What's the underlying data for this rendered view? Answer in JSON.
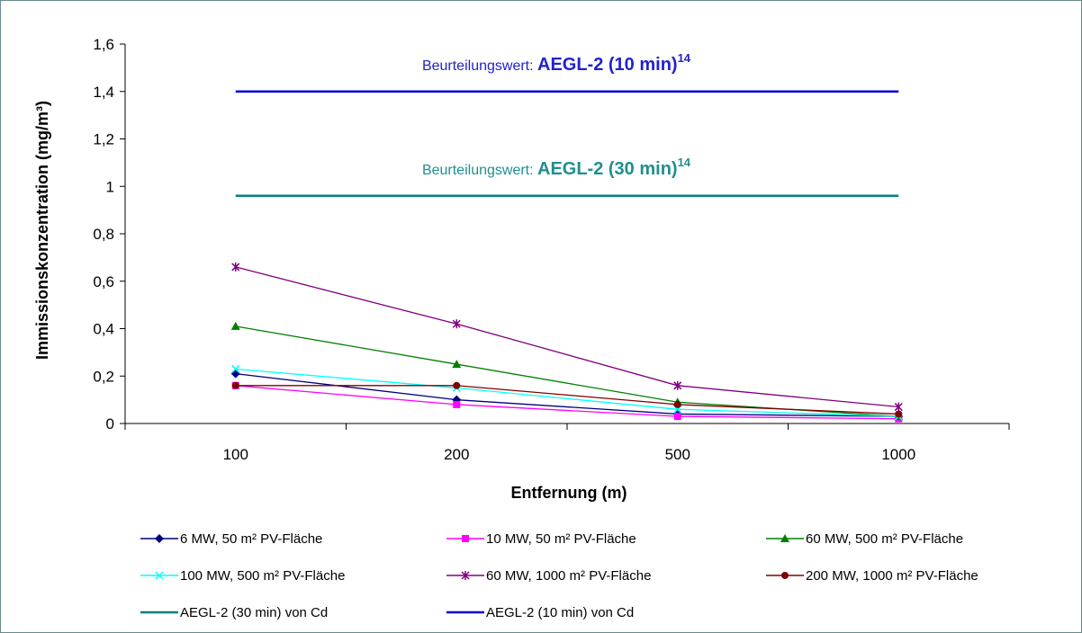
{
  "chart_data": {
    "type": "line",
    "title": "",
    "xlabel": "Entfernung (m)",
    "ylabel": "Immissionskonzentration (mg/m³)",
    "categories": [
      "100",
      "200",
      "500",
      "1000"
    ],
    "ylim": [
      0,
      1.6
    ],
    "yticks": [
      "0",
      "0,2",
      "0,4",
      "0,6",
      "0,8",
      "1",
      "1,2",
      "1,4",
      "1,6"
    ],
    "grid": false,
    "legend_position": "bottom",
    "series": [
      {
        "name": "6 MW, 50 m² PV-Fläche",
        "values": [
          0.21,
          0.1,
          0.04,
          0.03
        ],
        "color": "#000080",
        "marker": "diamond"
      },
      {
        "name": "10 MW, 50 m² PV-Fläche",
        "values": [
          0.16,
          0.08,
          0.03,
          0.02
        ],
        "color": "#ff00ff",
        "marker": "square"
      },
      {
        "name": "60 MW, 500 m² PV-Fläche",
        "values": [
          0.41,
          0.25,
          0.09,
          0.03
        ],
        "color": "#008000",
        "marker": "triangle"
      },
      {
        "name": "100 MW, 500 m² PV-Fläche",
        "values": [
          0.23,
          0.15,
          0.06,
          0.03
        ],
        "color": "#00ffff",
        "marker": "x"
      },
      {
        "name": "60 MW, 1000 m² PV-Fläche",
        "values": [
          0.66,
          0.42,
          0.16,
          0.07
        ],
        "color": "#800080",
        "marker": "star"
      },
      {
        "name": "200 MW, 1000 m² PV-Fläche",
        "values": [
          0.16,
          0.16,
          0.08,
          0.04
        ],
        "color": "#800000",
        "marker": "circle"
      },
      {
        "name": "AEGL-2 (30 min) von Cd",
        "values": [
          0.96,
          0.96,
          0.96,
          0.96
        ],
        "color": "#008080",
        "marker": "none",
        "width": 2.5
      },
      {
        "name": "AEGL-2 (10 min) von Cd",
        "values": [
          1.4,
          1.4,
          1.4,
          1.4
        ],
        "color": "#0000cc",
        "marker": "none",
        "width": 2.5
      }
    ],
    "annotations": [
      {
        "prefix": "Beurteilungswert:",
        "main": "AEGL-2 (10 min)",
        "sup": "14",
        "y": 1.52,
        "color": "#2222cc"
      },
      {
        "prefix": "Beurteilungswert:",
        "main": "AEGL-2 (30 min)",
        "sup": "14",
        "y": 1.08,
        "color": "#1f8f8f"
      }
    ]
  }
}
